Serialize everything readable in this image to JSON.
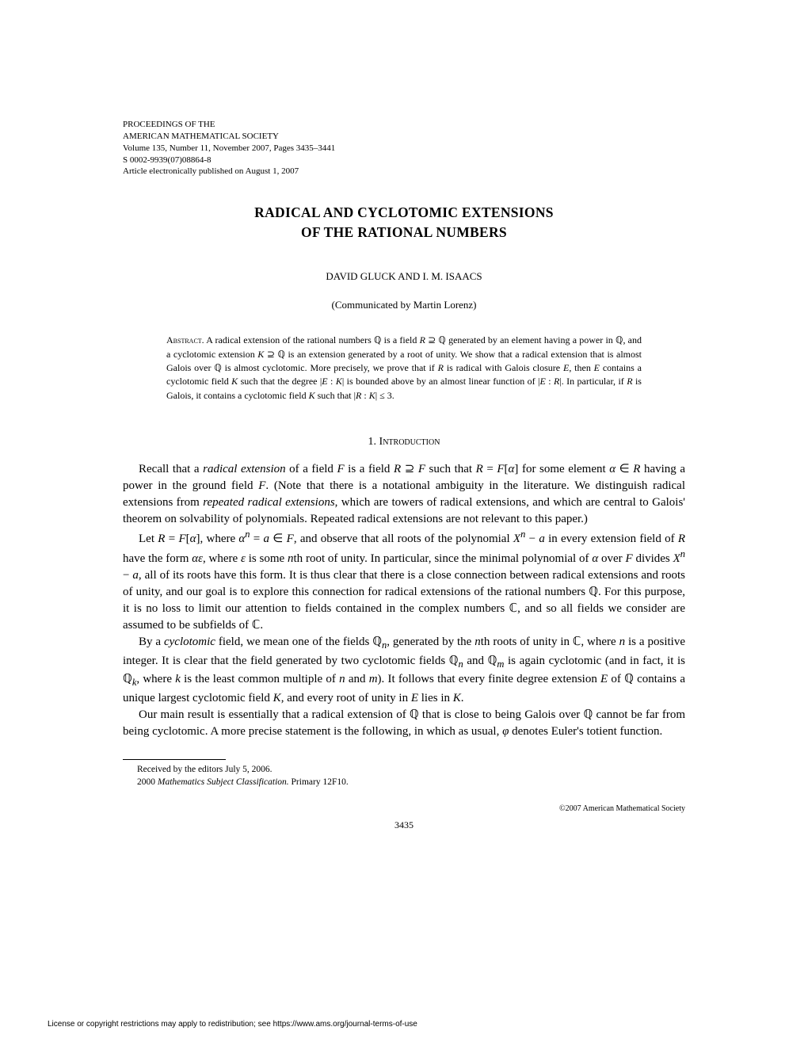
{
  "header": {
    "line1": "PROCEEDINGS OF THE",
    "line2": "AMERICAN MATHEMATICAL SOCIETY",
    "line3": "Volume 135, Number 11, November 2007, Pages 3435–3441",
    "line4": "S 0002-9939(07)08864-8",
    "line5": "Article electronically published on August 1, 2007"
  },
  "title": "RADICAL AND CYCLOTOMIC EXTENSIONS OF THE RATIONAL NUMBERS",
  "authors": "DAVID GLUCK AND I. M. ISAACS",
  "communicated": "(Communicated by Martin Lorenz)",
  "abstract_label": "Abstract.",
  "abstract_text": " A radical extension of the rational numbers ℚ is a field R ⊇ ℚ generated by an element having a power in ℚ, and a cyclotomic extension K ⊇ ℚ is an extension generated by a root of unity. We show that a radical extension that is almost Galois over ℚ is almost cyclotomic. More precisely, we prove that if R is radical with Galois closure E, then E contains a cyclotomic field K such that the degree |E : K| is bounded above by an almost linear function of |E : R|. In particular, if R is Galois, it contains a cyclotomic field K such that |R : K| ≤ 3.",
  "section_number": "1.",
  "section_title": "Introduction",
  "para1": "Recall that a radical extension of a field F is a field R ⊇ F such that R = F[α] for some element α ∈ R having a power in the ground field F. (Note that there is a notational ambiguity in the literature. We distinguish radical extensions from repeated radical extensions, which are towers of radical extensions, and which are central to Galois' theorem on solvability of polynomials. Repeated radical extensions are not relevant to this paper.)",
  "para2": "Let R = F[α], where αⁿ = a ∈ F, and observe that all roots of the polynomial Xⁿ − a in every extension field of R have the form αε, where ε is some nth root of unity. In particular, since the minimal polynomial of α over F divides Xⁿ − a, all of its roots have this form. It is thus clear that there is a close connection between radical extensions and roots of unity, and our goal is to explore this connection for radical extensions of the rational numbers ℚ. For this purpose, it is no loss to limit our attention to fields contained in the complex numbers ℂ, and so all fields we consider are assumed to be subfields of ℂ.",
  "para3": "By a cyclotomic field, we mean one of the fields ℚₙ, generated by the nth roots of unity in ℂ, where n is a positive integer. It is clear that the field generated by two cyclotomic fields ℚₙ and ℚₘ is again cyclotomic (and in fact, it is ℚₖ, where k is the least common multiple of n and m). It follows that every finite degree extension E of ℚ contains a unique largest cyclotomic field K, and every root of unity in E lies in K.",
  "para4": "Our main result is essentially that a radical extension of ℚ that is close to being Galois over ℚ cannot be far from being cyclotomic. A more precise statement is the following, in which as usual, φ denotes Euler's totient function.",
  "footnote1": "Received by the editors July 5, 2006.",
  "footnote2_label": "2000 Mathematics Subject Classification.",
  "footnote2_text": " Primary 12F10.",
  "copyright": "©2007 American Mathematical Society",
  "page_number": "3435",
  "license_notice": "License or copyright restrictions may apply to redistribution; see https://www.ams.org/journal-terms-of-use"
}
